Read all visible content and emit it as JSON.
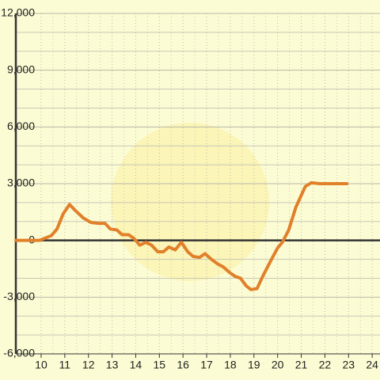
{
  "chart_data": {
    "type": "line",
    "x": [
      8.93,
      9.93,
      10.43,
      10.67,
      10.93,
      11.2,
      11.43,
      11.77,
      12.1,
      12.43,
      12.7,
      12.93,
      13.2,
      13.43,
      13.7,
      13.93,
      14.17,
      14.43,
      14.67,
      14.93,
      15.17,
      15.4,
      15.67,
      15.93,
      16.2,
      16.43,
      16.7,
      16.93,
      17.2,
      17.47,
      17.7,
      17.97,
      18.2,
      18.43,
      18.67,
      18.87,
      19.13,
      19.37,
      19.7,
      20.0,
      20.2,
      20.47,
      20.77,
      21.17,
      21.43,
      21.77,
      22.27,
      22.93
    ],
    "series": [
      {
        "color": "#e0802a",
        "values": [
          0,
          0,
          250,
          600,
          1400,
          1900,
          1600,
          1200,
          950,
          900,
          900,
          600,
          550,
          300,
          300,
          100,
          -250,
          -100,
          -250,
          -600,
          -600,
          -350,
          -500,
          -100,
          -600,
          -850,
          -900,
          -700,
          -1000,
          -1250,
          -1400,
          -1700,
          -1900,
          -2000,
          -2400,
          -2600,
          -2550,
          -1900,
          -1100,
          -400,
          -100,
          550,
          1750,
          2850,
          3050,
          3000,
          3000,
          3000
        ]
      }
    ],
    "xlim": [
      8.93,
      24.33
    ],
    "xticks": [
      10,
      11,
      12,
      13,
      14,
      15,
      16,
      17,
      18,
      19,
      20,
      21,
      22,
      23,
      24
    ],
    "ylim": [
      -6000,
      12000
    ],
    "yticks": [
      {
        "value": -6000,
        "label": "-6,000"
      },
      {
        "value": -3000,
        "label": "-3,000"
      },
      0,
      {
        "value": 3000,
        "label": "3,000"
      },
      {
        "value": 6000,
        "label": "6,000"
      },
      {
        "value": 9000,
        "label": "9,000"
      },
      {
        "value": 12000,
        "label": "12,000"
      }
    ],
    "grid": true
  }
}
